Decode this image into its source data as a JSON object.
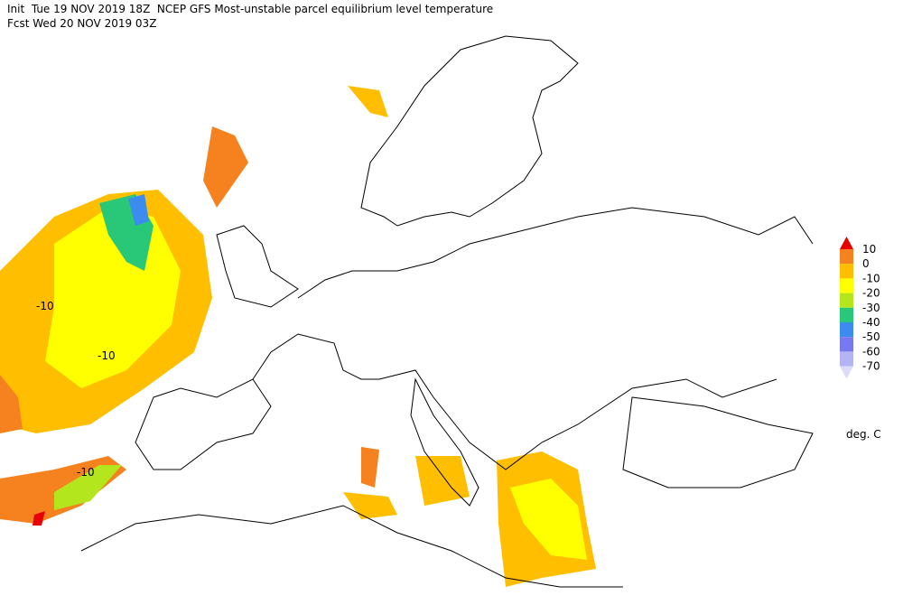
{
  "header": {
    "line1": "Init  Tue 19 NOV 2019 18Z  NCEP GFS Most-unstable parcel equilibrium level temperature",
    "line2": "Fcst Wed 20 NOV 2019 03Z"
  },
  "legend": {
    "ticks": [
      10,
      0,
      -10,
      -20,
      -30,
      -40,
      -50,
      -60,
      -70
    ],
    "colors": [
      "#e60000",
      "#f5821e",
      "#ffbe00",
      "#ffff00",
      "#b4e61e",
      "#28c878",
      "#3c8cf0",
      "#7878f0",
      "#b4b4f5",
      "#dcdcfa"
    ],
    "unit": "deg. C"
  },
  "contour_labels": [
    "-10",
    "-10",
    "-10"
  ]
}
